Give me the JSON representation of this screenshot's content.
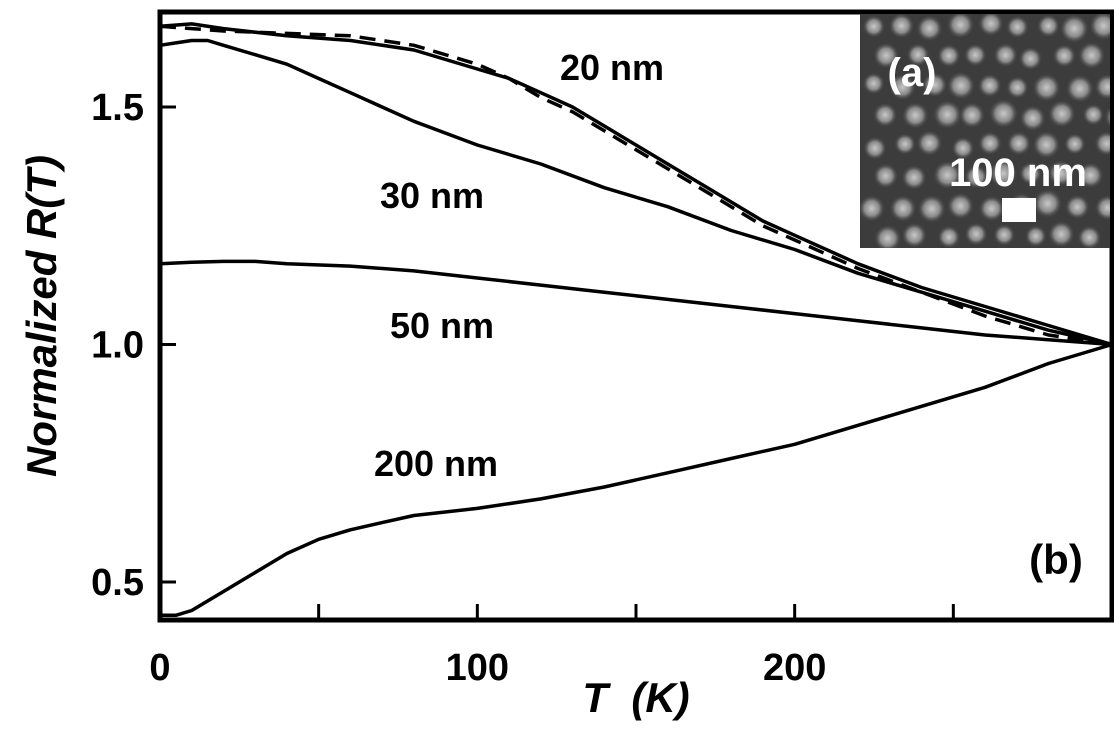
{
  "chart_data": {
    "type": "line",
    "xlabel": "T  (K)",
    "ylabel_prefix": "Normalized ",
    "ylabel_italic": "R(T)",
    "xlim": [
      0,
      300
    ],
    "ylim": [
      0.42,
      1.7
    ],
    "xticks": [
      0,
      100,
      200
    ],
    "xtick_labels": [
      "0",
      "100",
      "200"
    ],
    "xminor_ticks": [
      50,
      150,
      250
    ],
    "yticks": [
      0.5,
      1.0,
      1.5
    ],
    "ytick_labels": [
      "0.5",
      "1.0",
      "1.5"
    ],
    "grid": false,
    "panel_label": "(b)",
    "series": [
      {
        "name": "20 nm",
        "style": "solid",
        "x": [
          0,
          10,
          20,
          40,
          60,
          80,
          100,
          110,
          120,
          130,
          140,
          150,
          160,
          170,
          180,
          190,
          200,
          220,
          240,
          260,
          280,
          300
        ],
        "y": [
          1.67,
          1.675,
          1.665,
          1.65,
          1.64,
          1.62,
          1.58,
          1.56,
          1.53,
          1.5,
          1.46,
          1.42,
          1.38,
          1.34,
          1.3,
          1.26,
          1.23,
          1.17,
          1.12,
          1.08,
          1.04,
          1.0
        ]
      },
      {
        "name": "20 nm (dashed)",
        "style": "dashed",
        "x": [
          0,
          10,
          20,
          40,
          60,
          80,
          100,
          110,
          120,
          130,
          140,
          150,
          160,
          170,
          180,
          190,
          200,
          220,
          240,
          260,
          280,
          300
        ],
        "y": [
          1.67,
          1.665,
          1.66,
          1.655,
          1.65,
          1.63,
          1.59,
          1.56,
          1.52,
          1.49,
          1.45,
          1.41,
          1.37,
          1.33,
          1.29,
          1.25,
          1.22,
          1.16,
          1.11,
          1.06,
          1.02,
          1.0
        ]
      },
      {
        "name": "30 nm",
        "style": "solid",
        "x": [
          0,
          5,
          10,
          15,
          20,
          30,
          40,
          50,
          60,
          70,
          80,
          100,
          120,
          140,
          160,
          180,
          200,
          220,
          240,
          260,
          280,
          300
        ],
        "y": [
          1.63,
          1.635,
          1.64,
          1.64,
          1.63,
          1.61,
          1.59,
          1.56,
          1.53,
          1.5,
          1.47,
          1.42,
          1.38,
          1.33,
          1.29,
          1.24,
          1.2,
          1.15,
          1.11,
          1.07,
          1.03,
          1.0
        ]
      },
      {
        "name": "50 nm",
        "style": "solid",
        "x": [
          0,
          10,
          20,
          30,
          40,
          60,
          80,
          100,
          120,
          140,
          160,
          180,
          200,
          220,
          240,
          260,
          280,
          300
        ],
        "y": [
          1.17,
          1.173,
          1.175,
          1.175,
          1.17,
          1.165,
          1.155,
          1.14,
          1.125,
          1.11,
          1.095,
          1.08,
          1.065,
          1.05,
          1.035,
          1.02,
          1.01,
          1.0
        ]
      },
      {
        "name": "200 nm",
        "style": "solid",
        "x": [
          0,
          5,
          10,
          15,
          20,
          25,
          30,
          40,
          50,
          60,
          70,
          80,
          100,
          120,
          140,
          160,
          180,
          200,
          220,
          240,
          260,
          280,
          300
        ],
        "y": [
          0.43,
          0.43,
          0.44,
          0.46,
          0.48,
          0.5,
          0.52,
          0.56,
          0.59,
          0.61,
          0.625,
          0.64,
          0.655,
          0.675,
          0.7,
          0.73,
          0.76,
          0.79,
          0.83,
          0.87,
          0.91,
          0.96,
          1.0
        ]
      }
    ],
    "curve_labels": [
      "20 nm",
      "30 nm",
      "50 nm",
      "200 nm"
    ],
    "inset": {
      "panel_label": "(a)",
      "scale_label": "100 nm"
    }
  }
}
